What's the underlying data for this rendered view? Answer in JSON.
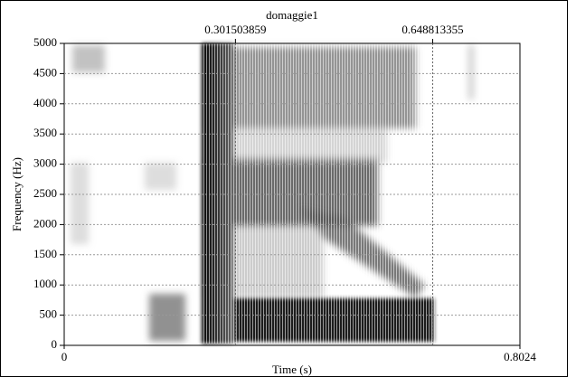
{
  "chart_data": {
    "type": "spectrogram",
    "title": "domaggie1",
    "x_label": "Time (s)",
    "y_label": "Frequency (Hz)",
    "xlim": [
      0,
      0.8024
    ],
    "xticks": [
      0,
      0.8024
    ],
    "ylim": [
      0,
      5000
    ],
    "yticks": [
      0,
      500,
      1000,
      1500,
      2000,
      2500,
      3000,
      3500,
      4000,
      4500,
      5000
    ],
    "markers": [
      0.301503859,
      0.648813355
    ],
    "grid": true
  }
}
